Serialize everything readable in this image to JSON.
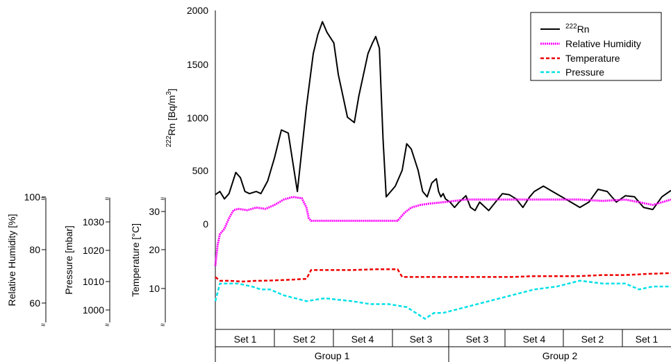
{
  "chart_data": {
    "type": "line",
    "x_categories": {
      "sets": [
        "Set 1",
        "Set 2",
        "Set 4",
        "Set 3",
        "Set 3",
        "Set 4",
        "Set 2",
        "Set 1"
      ],
      "groups": [
        "Group 1",
        "Group 2"
      ]
    },
    "axes": {
      "rn": {
        "label_main": "Rn [Bq/m",
        "label_sup1": "222",
        "label_sup2": "3",
        "label_end": "]",
        "ylim": [
          0,
          2000
        ],
        "ticks": [
          "0",
          "500",
          "1000",
          "1500",
          "2000"
        ]
      },
      "temperature": {
        "label": "Temperature [°C]",
        "ticks": [
          "10",
          "20",
          "30"
        ]
      },
      "pressure": {
        "label": "Pressure [mbar]",
        "ticks": [
          "1000",
          "1010",
          "1020",
          "1030"
        ]
      },
      "humidity": {
        "label": "Relative Humidity [%]",
        "ticks": [
          "60",
          "80",
          "100"
        ]
      }
    },
    "legend": {
      "position": "top-right",
      "entries": [
        {
          "sup": "222",
          "text": "Rn",
          "color": "#000000",
          "style": "solid"
        },
        {
          "sup": "",
          "text": "Relative Humidity",
          "color": "#ff00ff",
          "style": "dotted"
        },
        {
          "sup": "",
          "text": "Temperature",
          "color": "#ee0000",
          "style": "dashed"
        },
        {
          "sup": "",
          "text": "Pressure",
          "color": "#00e0e8",
          "style": "dashed"
        }
      ]
    },
    "series": [
      {
        "name": "222Rn",
        "color": "#000000",
        "x": [
          0,
          0.01,
          0.02,
          0.03,
          0.045,
          0.055,
          0.065,
          0.075,
          0.09,
          0.1,
          0.115,
          0.13,
          0.145,
          0.16,
          0.18,
          0.2,
          0.215,
          0.225,
          0.235,
          0.245,
          0.26,
          0.27,
          0.28,
          0.29,
          0.305,
          0.315,
          0.325,
          0.335,
          0.345,
          0.352,
          0.36,
          0.368,
          0.375,
          0.385,
          0.395,
          0.41,
          0.42,
          0.43,
          0.445,
          0.455,
          0.465,
          0.475,
          0.485,
          0.49,
          0.495,
          0.5,
          0.505,
          0.515,
          0.525,
          0.535,
          0.55,
          0.56,
          0.57,
          0.58,
          0.59,
          0.6,
          0.615,
          0.63,
          0.645,
          0.66,
          0.675,
          0.69,
          0.7,
          0.72,
          0.74,
          0.76,
          0.78,
          0.8,
          0.82,
          0.84,
          0.86,
          0.88,
          0.9,
          0.92,
          0.94,
          0.96,
          0.98,
          1.0
        ],
        "values": [
          270,
          300,
          230,
          280,
          480,
          430,
          300,
          280,
          300,
          280,
          400,
          620,
          880,
          850,
          300,
          1100,
          1600,
          1780,
          1900,
          1800,
          1700,
          1400,
          1200,
          1000,
          950,
          1200,
          1400,
          1600,
          1700,
          1760,
          1650,
          800,
          250,
          300,
          350,
          500,
          750,
          700,
          500,
          300,
          250,
          380,
          420,
          300,
          250,
          280,
          230,
          200,
          150,
          200,
          260,
          150,
          120,
          200,
          160,
          120,
          200,
          280,
          270,
          230,
          150,
          250,
          300,
          350,
          300,
          250,
          200,
          150,
          200,
          320,
          300,
          200,
          260,
          250,
          150,
          130,
          250,
          310
        ]
      },
      {
        "name": "Relative Humidity",
        "color": "#ff00ff",
        "x": [
          0,
          0.005,
          0.01,
          0.02,
          0.03,
          0.04,
          0.05,
          0.07,
          0.09,
          0.11,
          0.13,
          0.15,
          0.17,
          0.19,
          0.2,
          0.205,
          0.21,
          0.23,
          0.26,
          0.3,
          0.34,
          0.4,
          0.415,
          0.43,
          0.45,
          0.47,
          0.5,
          0.55,
          0.6,
          0.65,
          0.7,
          0.75,
          0.8,
          0.85,
          0.9,
          0.93,
          0.96,
          1.0
        ],
        "values": [
          74,
          82,
          86,
          88,
          92,
          95,
          95.5,
          95,
          96,
          95.5,
          97,
          99,
          100,
          99.5,
          96,
          92,
          91,
          91,
          91,
          91,
          91,
          91,
          94,
          96,
          97,
          97.5,
          98,
          99,
          99,
          99,
          99,
          99,
          99,
          98.5,
          99,
          98,
          97,
          99
        ]
      },
      {
        "name": "Temperature",
        "color": "#ee0000",
        "x": [
          0,
          0.01,
          0.03,
          0.06,
          0.09,
          0.1,
          0.15,
          0.2,
          0.21,
          0.25,
          0.3,
          0.35,
          0.4,
          0.41,
          0.45,
          0.5,
          0.55,
          0.6,
          0.65,
          0.7,
          0.75,
          0.8,
          0.85,
          0.9,
          0.95,
          1.0
        ],
        "values": [
          13,
          12,
          12,
          11.8,
          12,
          12,
          12.2,
          12.5,
          14.8,
          14.8,
          14.8,
          15,
          15,
          13,
          13,
          13,
          13,
          13,
          13,
          13.2,
          13.2,
          13.2,
          13.5,
          13.5,
          13.8,
          14
        ]
      },
      {
        "name": "Pressure",
        "color": "#00e0e8",
        "x": [
          0,
          0.01,
          0.05,
          0.08,
          0.1,
          0.12,
          0.15,
          0.2,
          0.24,
          0.3,
          0.34,
          0.38,
          0.42,
          0.46,
          0.48,
          0.5,
          0.55,
          0.6,
          0.65,
          0.7,
          0.75,
          0.8,
          0.85,
          0.9,
          0.93,
          0.96,
          1.0
        ],
        "values": [
          1003,
          1009,
          1009,
          1008,
          1007,
          1007,
          1005,
          1003,
          1004,
          1003,
          1002,
          1002,
          1001,
          997,
          999,
          999,
          1001,
          1003,
          1005,
          1007,
          1008,
          1010,
          1009,
          1009,
          1007,
          1008,
          1008
        ]
      }
    ]
  }
}
